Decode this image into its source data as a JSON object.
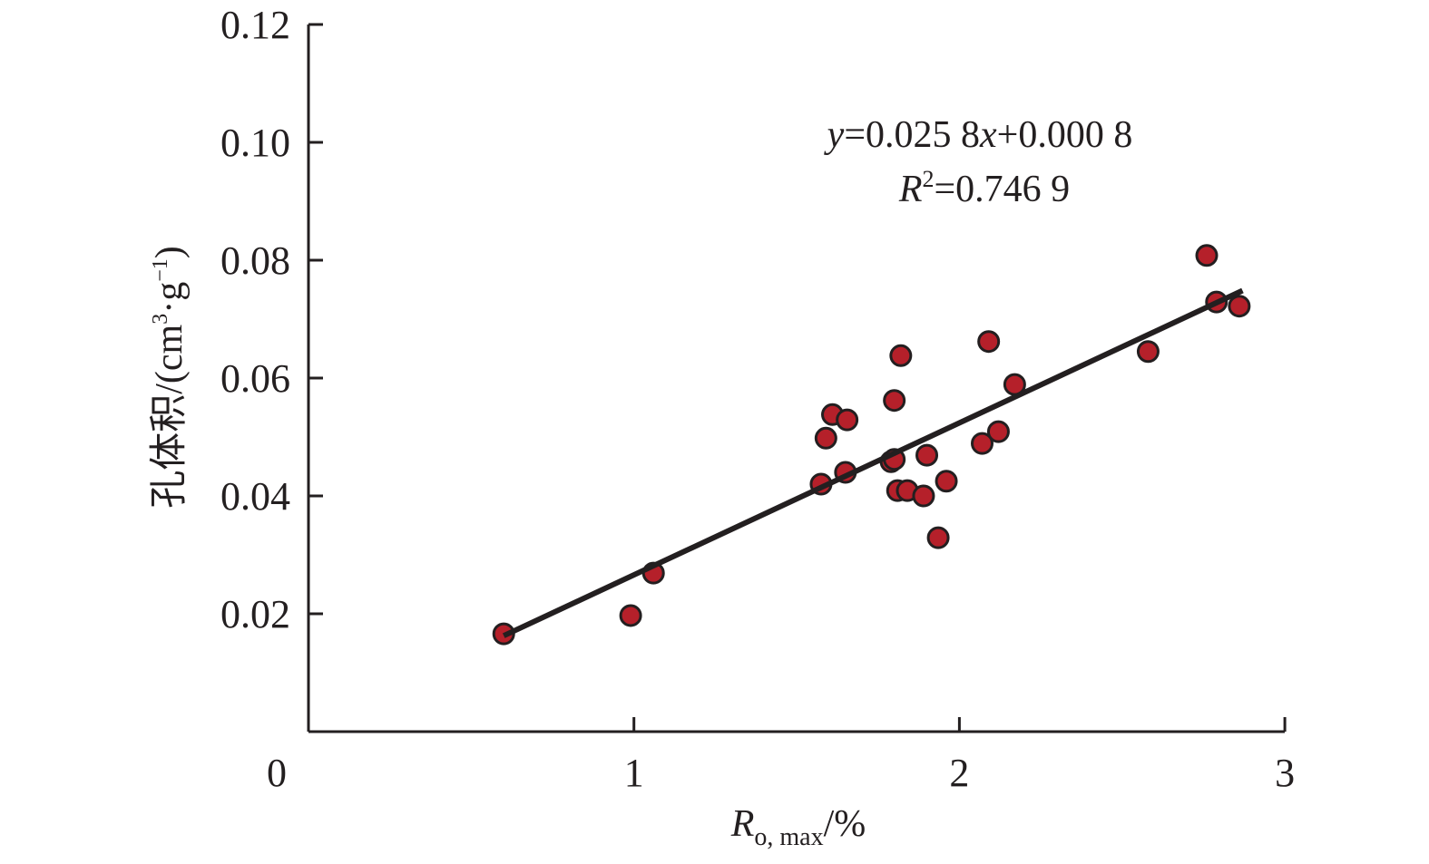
{
  "chart_data": {
    "type": "scatter",
    "title": "",
    "xlabel": "R_o,max/%",
    "xlabel_parts": {
      "main": "R",
      "sub": "o, max",
      "suffix": "/%"
    },
    "ylabel": "孔体积/(cm³·g⁻¹)",
    "ylabel_parts": {
      "main": "孔体积/(cm",
      "sup1": "3",
      "mid": "·g",
      "sup2": "−1",
      "end": ")"
    },
    "xlim": [
      0,
      3
    ],
    "ylim": [
      0,
      0.12
    ],
    "xticks": [
      0,
      1,
      2,
      3
    ],
    "xtick_labels": [
      "0",
      "1",
      "2",
      "3"
    ],
    "yticks": [
      0.02,
      0.04,
      0.06,
      0.08,
      0.1,
      0.12
    ],
    "ytick_labels": [
      "0.02",
      "0.04",
      "0.06",
      "0.08",
      "0.10",
      "0.12"
    ],
    "grid": false,
    "points": {
      "x": [
        0.6,
        0.99,
        1.06,
        1.575,
        1.59,
        1.61,
        1.655,
        1.65,
        1.79,
        1.8,
        1.8,
        1.82,
        1.81,
        1.84,
        1.89,
        1.9,
        1.935,
        1.96,
        2.07,
        2.09,
        2.12,
        2.17,
        2.58,
        2.76,
        2.79,
        2.86
      ],
      "y": [
        0.0166,
        0.0197,
        0.0269,
        0.042,
        0.0498,
        0.0538,
        0.0529,
        0.044,
        0.0458,
        0.0462,
        0.0562,
        0.0638,
        0.0409,
        0.0409,
        0.04,
        0.0469,
        0.0329,
        0.0425,
        0.0489,
        0.0662,
        0.0509,
        0.0589,
        0.0645,
        0.0808,
        0.0729,
        0.0722
      ]
    },
    "fit": {
      "slope": 0.0258,
      "intercept": 0.0008,
      "x_range": [
        0.6,
        2.87
      ]
    },
    "equation": {
      "y": "y",
      "eq1": "=0.025 8",
      "x": "x",
      "eq2": "+0.000 8"
    },
    "r2": {
      "R": "R",
      "sup": "2",
      "value": "=0.746 9"
    },
    "colors": {
      "point_fill": "#b5202a",
      "point_stroke": "#231f20",
      "line": "#231f20",
      "axis": "#231f20"
    }
  }
}
